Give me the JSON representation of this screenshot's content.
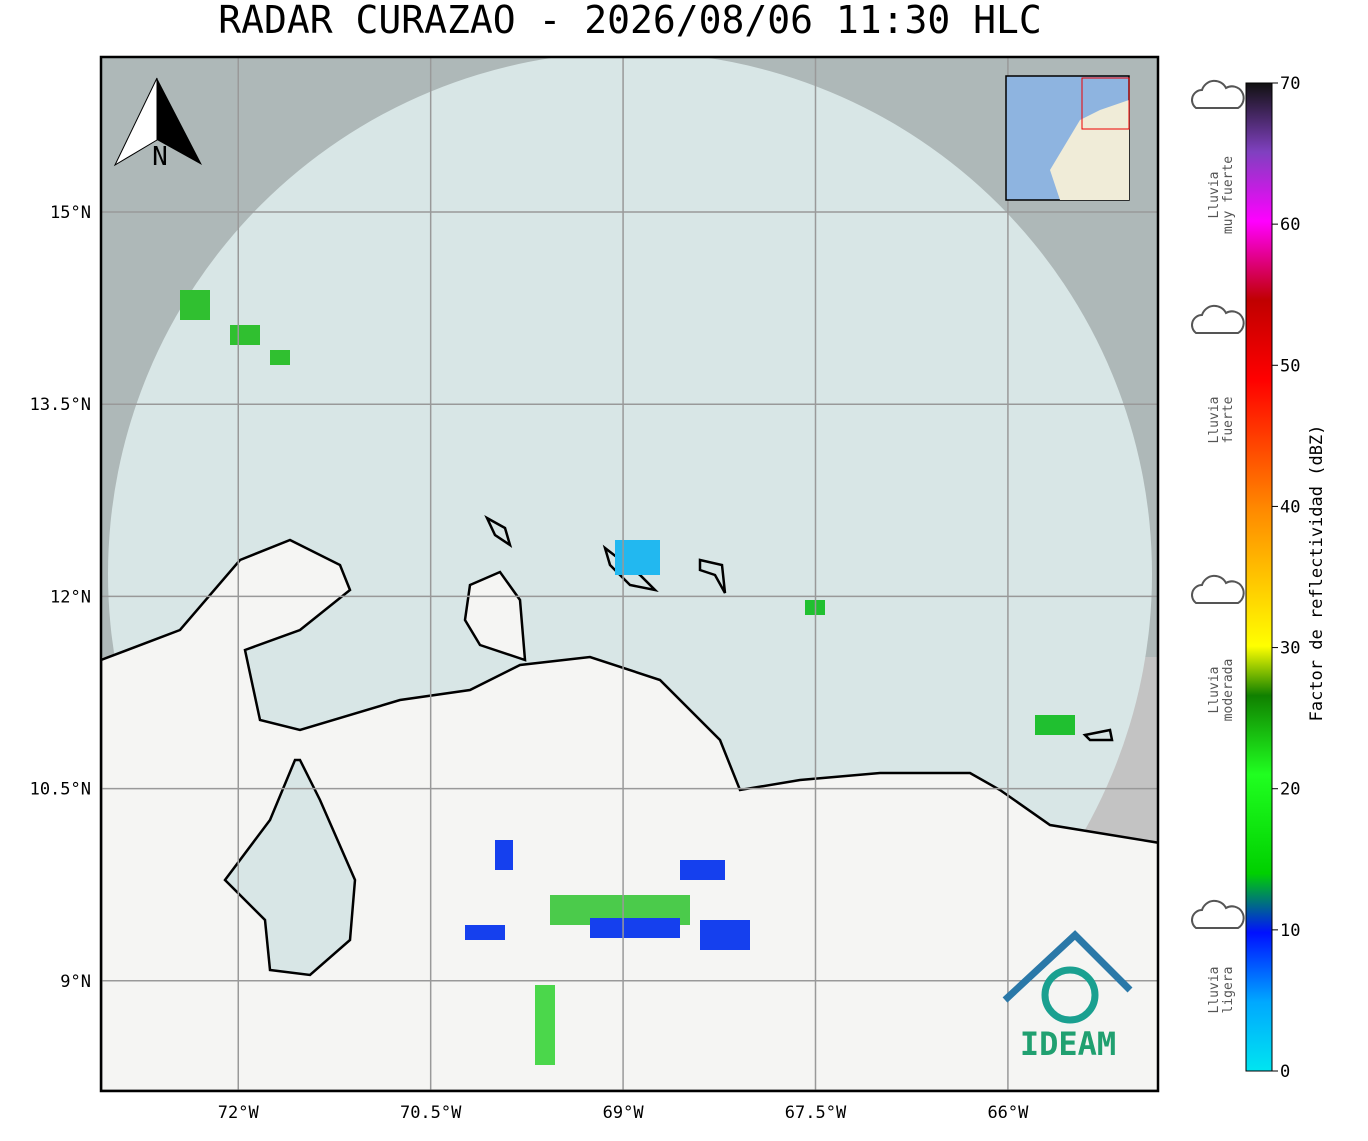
{
  "title": "RADAR CURAZAO - 2026/08/06 11:30 HLC",
  "map": {
    "lon_range": [
      -73.07,
      -64.83
    ],
    "lat_range": [
      8.14,
      16.21
    ],
    "lon_ticks": [
      {
        "value": -72,
        "label": "72°W"
      },
      {
        "value": -70.5,
        "label": "70.5°W"
      },
      {
        "value": -69,
        "label": "69°W"
      },
      {
        "value": -67.5,
        "label": "67.5°W"
      },
      {
        "value": -66,
        "label": "66°W"
      }
    ],
    "lat_ticks": [
      {
        "value": 15,
        "label": "15°N"
      },
      {
        "value": 13.5,
        "label": "13.5°N"
      },
      {
        "value": 12,
        "label": "12°N"
      },
      {
        "value": 10.5,
        "label": "10.5°N"
      },
      {
        "value": 9,
        "label": "9°N"
      }
    ],
    "north": "N",
    "logo": "IDEAM"
  },
  "colorbar": {
    "label": "Factor de reflectividad (dBZ)",
    "range": [
      0,
      70
    ],
    "ticks": [
      0,
      10,
      20,
      30,
      40,
      50,
      60,
      70
    ],
    "categories": [
      [
        "Lluvia",
        "muy fuerte"
      ],
      [
        "Lluvia",
        "fuerte"
      ],
      [
        "Lluvia",
        "moderada"
      ],
      [
        "Lluvia",
        "ligera"
      ]
    ]
  }
}
